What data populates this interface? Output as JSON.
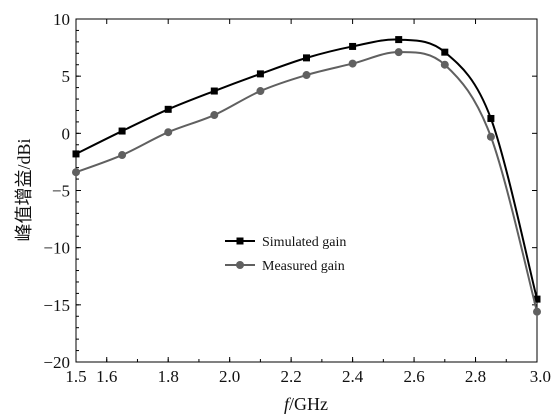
{
  "chart_data": {
    "type": "line",
    "xlabel_italic": "f",
    "xlabel_unit": "/GHz",
    "ylabel": "峰值增益/dBi",
    "xlim": [
      1.5,
      3.0
    ],
    "ylim": [
      -20,
      10
    ],
    "xticks": [
      "1.6",
      "1.8",
      "2.0",
      "2.2",
      "2.4",
      "2.6",
      "2.8",
      "3.0"
    ],
    "yticks": [
      "10",
      "5",
      "0",
      "−5",
      "−10",
      "−15",
      "−20"
    ],
    "grid": false,
    "legend_position": "center-left",
    "series": [
      {
        "name": "Simulated gain",
        "color": "#000000",
        "marker": "square",
        "x": [
          1.5,
          1.65,
          1.8,
          1.95,
          2.1,
          2.25,
          2.4,
          2.55,
          2.7,
          2.85,
          3.0
        ],
        "y": [
          -1.8,
          0.2,
          2.1,
          3.7,
          5.2,
          6.6,
          7.6,
          8.2,
          7.1,
          1.3,
          -14.5
        ]
      },
      {
        "name": "Measured gain",
        "color": "#606060",
        "marker": "circle",
        "x": [
          1.5,
          1.65,
          1.8,
          1.95,
          2.1,
          2.25,
          2.4,
          2.55,
          2.7,
          2.85,
          3.0
        ],
        "y": [
          -3.4,
          -1.9,
          0.1,
          1.6,
          3.7,
          5.1,
          6.1,
          7.1,
          6.0,
          -0.3,
          -15.6
        ]
      }
    ]
  }
}
